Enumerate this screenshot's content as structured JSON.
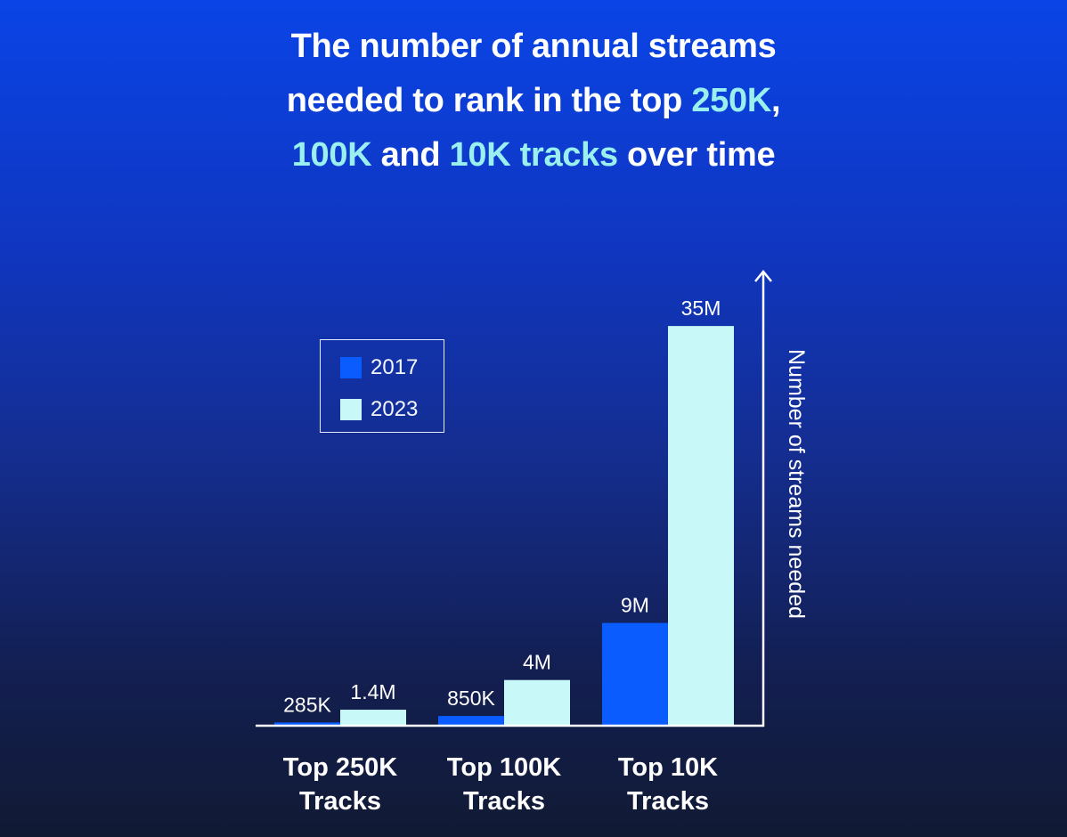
{
  "title": {
    "part1": "The number of annual streams",
    "part2": "needed to rank in the top ",
    "hl1": "250K",
    "comma": ",",
    "hl2": "100K",
    "and": " and ",
    "hl3": "10K tracks",
    "tail": " over time"
  },
  "colors": {
    "s2017": "#0a5cff",
    "s2023": "#c8f8f8",
    "highlight": "#9af0ee",
    "axis": "#ffffff"
  },
  "chart_data": {
    "type": "bar",
    "categories": [
      [
        "Top 250K",
        "Tracks"
      ],
      [
        "Top 100K",
        "Tracks"
      ],
      [
        "Top 10K",
        "Tracks"
      ]
    ],
    "series": [
      {
        "name": "2017",
        "values": [
          285000,
          850000,
          9000000
        ],
        "labels": [
          "285K",
          "850K",
          "9M"
        ]
      },
      {
        "name": "2023",
        "values": [
          1400000,
          4000000,
          35000000
        ],
        "labels": [
          "1.4M",
          "4M",
          "35M"
        ]
      }
    ],
    "ylabel": "Number of streams needed",
    "xlabel": "",
    "ylim": [
      0,
      40000000
    ],
    "legend_position": "upper-left",
    "grid": false
  }
}
